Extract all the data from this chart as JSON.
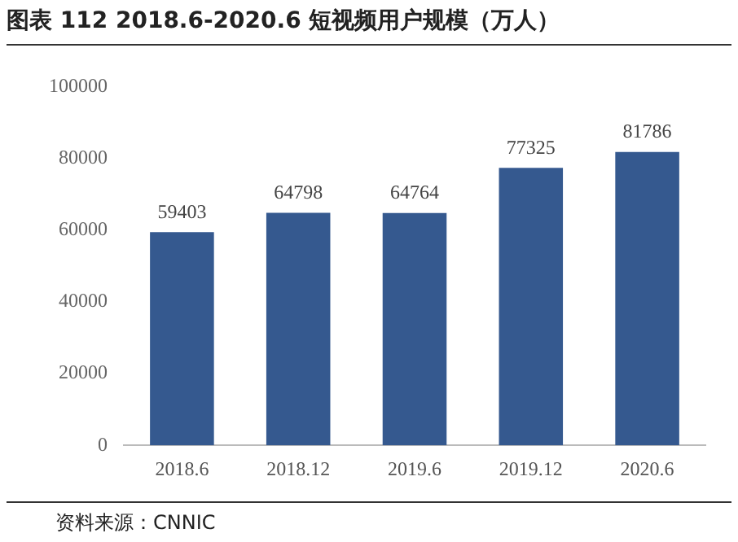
{
  "chart_data": {
    "type": "bar",
    "title": "图表 112 2018.6-2020.6 短视频用户规模（万人）",
    "categories": [
      "2018.6",
      "2018.12",
      "2019.6",
      "2019.12",
      "2020.6"
    ],
    "values": [
      59403,
      64798,
      64764,
      77325,
      81786
    ],
    "color": "#35598f",
    "ylim": [
      0,
      100000
    ],
    "yticks": [
      0,
      20000,
      40000,
      60000,
      80000,
      100000
    ],
    "grid": false,
    "data_labels": true,
    "annotations": [
      "资料来源：CNNIC"
    ]
  }
}
